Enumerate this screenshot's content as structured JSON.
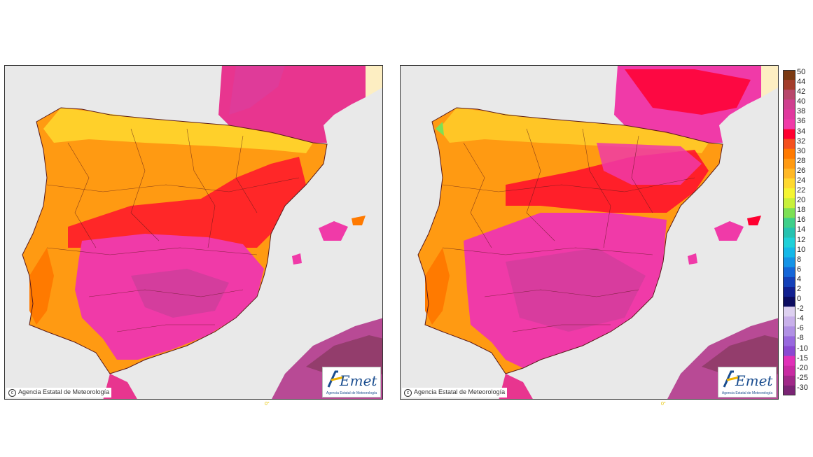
{
  "maps": {
    "left": {
      "copyright": "Agencia Estatal de Meteorología",
      "logo_text": "Agencia Estatal de Meteorología",
      "degree_label": "0°"
    },
    "right": {
      "copyright": "Agencia Estatal de Meteorología",
      "logo_text": "Agencia Estatal de Meteorología",
      "degree_label": "0°"
    }
  },
  "logo": {
    "name": "AEmet"
  },
  "colors": {
    "sea": "#e9e9e9",
    "sand": "#fdeec2",
    "outline": "#5a1a1a"
  },
  "scale": {
    "labels": [
      "50",
      "44",
      "42",
      "40",
      "38",
      "36",
      "34",
      "32",
      "30",
      "28",
      "26",
      "24",
      "22",
      "20",
      "18",
      "16",
      "14",
      "12",
      "10",
      "8",
      "6",
      "4",
      "2",
      "0",
      "-2",
      "-4",
      "-6",
      "-8",
      "-10",
      "-15",
      "-20",
      "-25",
      "-30"
    ],
    "colors": [
      "#7b3a12",
      "#a33d2b",
      "#b8476b",
      "#cf3f8f",
      "#e0389e",
      "#f03aa8",
      "#ff0030",
      "#f4501e",
      "#ff7a00",
      "#ff9a12",
      "#ffb825",
      "#ffd92f",
      "#f5f532",
      "#c8f03a",
      "#7de055",
      "#3fcf8a",
      "#26c2b0",
      "#1fd0d8",
      "#14b8e8",
      "#1493e6",
      "#1466d8",
      "#1440b8",
      "#122090",
      "#0c0c60",
      "#ddd0f0",
      "#c8b0ea",
      "#b090e4",
      "#9868de",
      "#8a48d2",
      "#e030b8",
      "#c82aa2",
      "#a02888",
      "#7a2474"
    ]
  }
}
